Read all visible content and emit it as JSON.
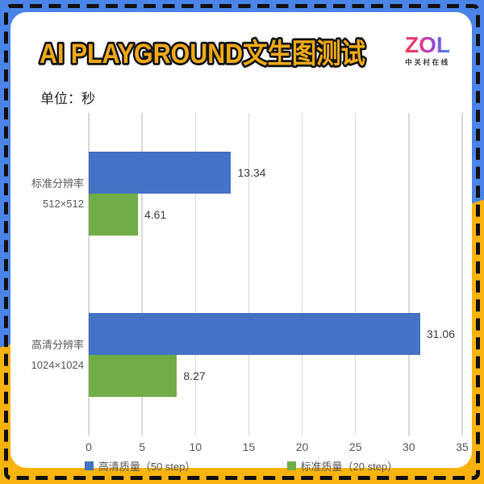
{
  "page": {
    "frame_blue": "#4a84e8",
    "frame_yellow": "#f9b30d",
    "dash_color": "#101010",
    "card_bg": "#ffffff"
  },
  "header": {
    "title": "AI PLAYGROUND文生图测试",
    "title_color": "#f0a817",
    "unit_label": "单位：秒"
  },
  "brand": {
    "name": "ZOL",
    "subtitle": "中关村在线"
  },
  "chart_data": {
    "type": "bar",
    "orientation": "horizontal",
    "title": "AI PLAYGROUND文生图测试",
    "unit": "秒",
    "categories": [
      "标准分辨率 512×512",
      "高清分辨率 1024×1024"
    ],
    "category_lines": [
      [
        "标准分辨率",
        "512×512"
      ],
      [
        "高清分辨率",
        "1024×1024"
      ]
    ],
    "series": [
      {
        "name": "高清质量（50 step）",
        "color": "#4472C4",
        "values": [
          13.34,
          31.06
        ],
        "labels": [
          "13.34",
          "31.06"
        ]
      },
      {
        "name": "标准质量（20 step）",
        "color": "#70AD47",
        "values": [
          4.61,
          8.27
        ],
        "labels": [
          "4.61",
          "8.27"
        ]
      }
    ],
    "xlim": [
      0,
      35
    ],
    "xticks": [
      0,
      5,
      10,
      15,
      20,
      25,
      30,
      35
    ],
    "grid": "vertical-only",
    "gridline_color": "#d9d9d9",
    "legend_position": "bottom",
    "value_labels_shown": true,
    "text_color": "#595959",
    "value_label_color": "#404040"
  }
}
